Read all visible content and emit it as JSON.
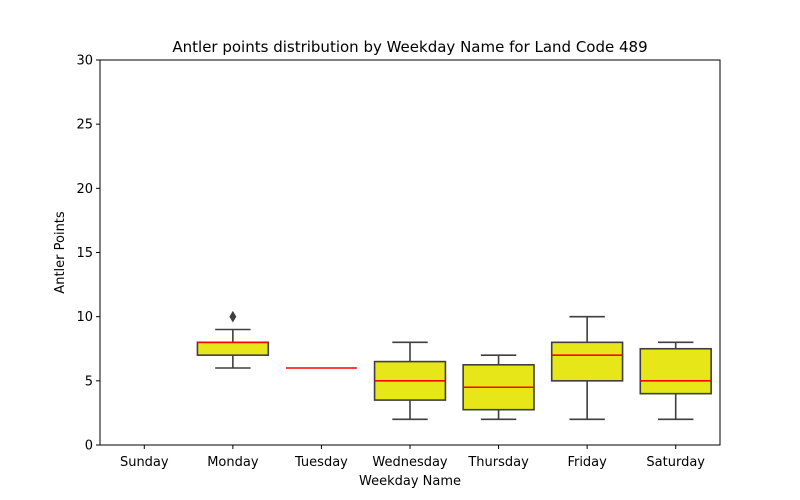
{
  "chart_data": {
    "type": "box",
    "title": "Antler points distribution by Weekday Name for Land Code 489",
    "xlabel": "Weekday Name",
    "ylabel": "Antler Points",
    "ylim": [
      0,
      30
    ],
    "yticks": [
      0,
      5,
      10,
      15,
      20,
      25,
      30
    ],
    "grid": false,
    "colors": {
      "box_fill": "#e6e619",
      "box_edge": "#3f3f3f",
      "median": "#ff0000"
    },
    "categories": [
      "Sunday",
      "Monday",
      "Tuesday",
      "Wednesday",
      "Thursday",
      "Friday",
      "Saturday"
    ],
    "boxes": [
      null,
      {
        "min": 6,
        "q1": 7,
        "median": 8,
        "q3": 8,
        "max": 9,
        "outliers": [
          10
        ]
      },
      {
        "min": 6,
        "q1": 6,
        "median": 6,
        "q3": 6,
        "max": 6,
        "outliers": []
      },
      {
        "min": 2,
        "q1": 3.5,
        "median": 5,
        "q3": 6.5,
        "max": 8,
        "outliers": []
      },
      {
        "min": 2,
        "q1": 2.75,
        "median": 4.5,
        "q3": 6.25,
        "max": 7,
        "outliers": []
      },
      {
        "min": 2,
        "q1": 5,
        "median": 7,
        "q3": 8,
        "max": 10,
        "outliers": []
      },
      {
        "min": 2,
        "q1": 4,
        "median": 5,
        "q3": 7.5,
        "max": 8,
        "outliers": []
      }
    ]
  }
}
